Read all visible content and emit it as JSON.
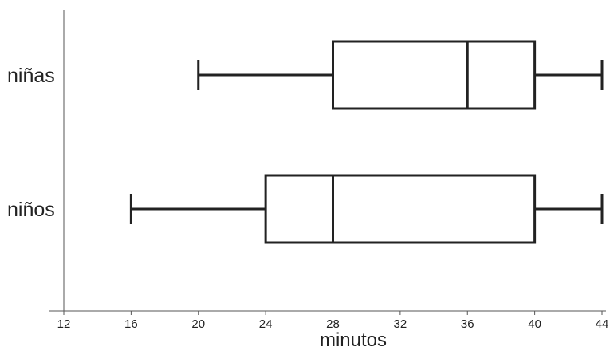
{
  "chart_data": {
    "type": "boxplot",
    "title": "",
    "xlabel": "minutos",
    "ylabel": "",
    "xlim": [
      12,
      44
    ],
    "xticks": [
      12,
      16,
      20,
      24,
      28,
      32,
      36,
      40,
      44
    ],
    "grid": false,
    "categories": [
      "niñas",
      "niños"
    ],
    "series": [
      {
        "category": "niñas",
        "min": 20,
        "q1": 28,
        "median": 36,
        "q3": 40,
        "max": 44
      },
      {
        "category": "niños",
        "min": 16,
        "q1": 24,
        "median": 28,
        "q3": 40,
        "max": 44
      }
    ],
    "colors": {
      "stroke": "#222222",
      "axis": "#555555"
    }
  }
}
